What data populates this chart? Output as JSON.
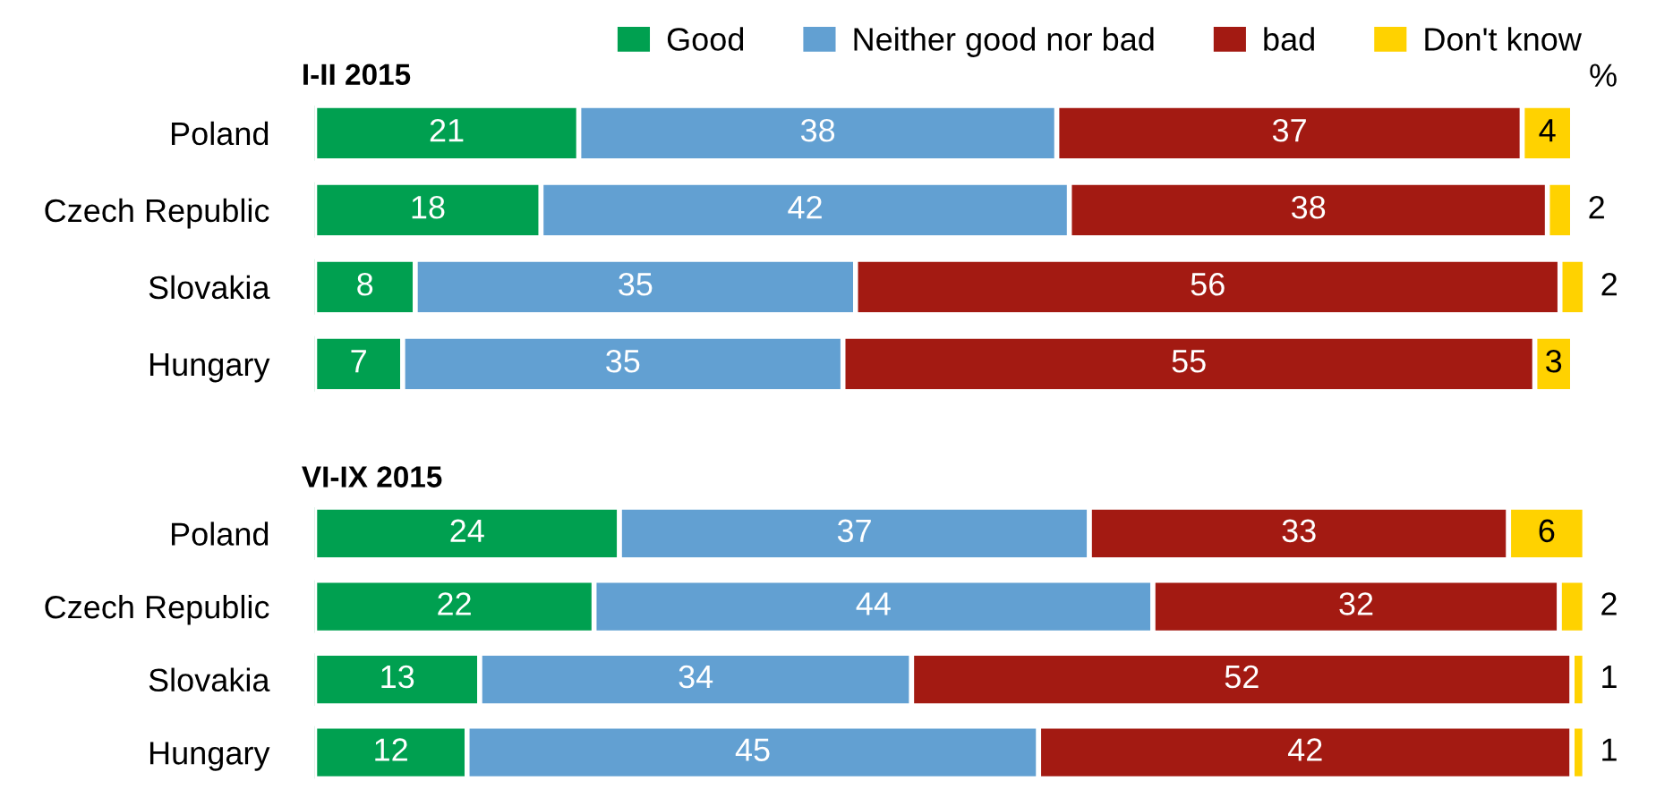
{
  "chart_data": [
    {
      "type": "bar",
      "orientation": "horizontal",
      "stacked": true,
      "title": "I-II 2015",
      "legend": "top",
      "data_labels": true,
      "annotations": [
        "%"
      ],
      "categories": [
        "Poland",
        "Czech Republic",
        "Slovakia",
        "Hungary"
      ],
      "series": [
        {
          "name": "Good",
          "color": "#00a050",
          "values": [
            21,
            18,
            8,
            7
          ]
        },
        {
          "name": "Neither good nor bad",
          "color": "#62a0d2",
          "values": [
            38,
            42,
            35,
            35
          ]
        },
        {
          "name": "bad",
          "color": "#a31a12",
          "values": [
            37,
            38,
            56,
            55
          ]
        },
        {
          "name": "Don't know",
          "color": "#ffd200",
          "values": [
            4,
            2,
            2,
            3
          ]
        }
      ]
    },
    {
      "type": "bar",
      "orientation": "horizontal",
      "stacked": true,
      "title": "VI-IX 2015",
      "data_labels": true,
      "categories": [
        "Poland",
        "Czech Republic",
        "Slovakia",
        "Hungary"
      ],
      "series": [
        {
          "color": "#00a050",
          "values": [
            24,
            22,
            13,
            12
          ]
        },
        {
          "color": "#62a0d2",
          "values": [
            37,
            44,
            34,
            45
          ]
        },
        {
          "color": "#a31a12",
          "values": [
            33,
            32,
            52,
            42
          ]
        },
        {
          "color": "#ffd200",
          "values": [
            6,
            2,
            1,
            1
          ]
        }
      ]
    }
  ]
}
